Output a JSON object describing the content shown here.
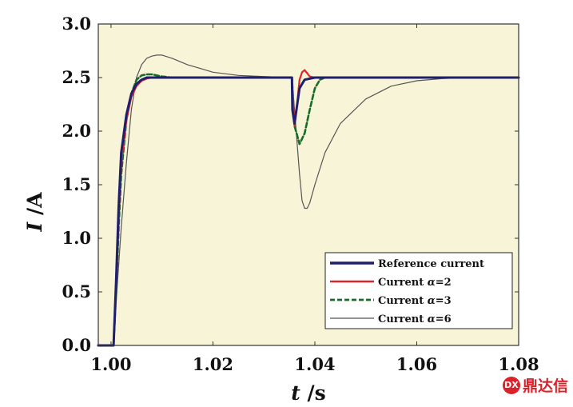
{
  "chart_data": {
    "type": "line",
    "title": "",
    "xlabel": {
      "italic": "t",
      "rest": " /s"
    },
    "ylabel": {
      "italic": "I",
      "rest": " /A"
    },
    "xlim": [
      0.9975,
      1.08
    ],
    "ylim": [
      0.0,
      3.0
    ],
    "xticks": [
      1.0,
      1.02,
      1.04,
      1.06,
      1.08
    ],
    "xtick_labels": [
      "1.00",
      "1.02",
      "1.04",
      "1.06",
      "1.08"
    ],
    "yticks": [
      0.0,
      0.5,
      1.0,
      1.5,
      2.0,
      2.5,
      3.0
    ],
    "ytick_labels": [
      "0.0",
      "0.5",
      "1.0",
      "1.5",
      "2.0",
      "2.5",
      "3.0"
    ],
    "grid": false,
    "legend_position": "bottom-right",
    "series": [
      {
        "name": "Reference current",
        "alpha": null,
        "color": "#1f1f6e",
        "style": "solid",
        "width": 3,
        "x": [
          0.9975,
          1.0005,
          1.001,
          1.0015,
          1.002,
          1.003,
          1.004,
          1.005,
          1.006,
          1.007,
          1.008,
          1.01,
          1.015,
          1.02,
          1.03,
          1.0355,
          1.0356,
          1.036,
          1.037,
          1.038,
          1.04,
          1.05,
          1.06,
          1.07,
          1.08
        ],
        "y": [
          0.0,
          0.0,
          0.6,
          1.3,
          1.8,
          2.15,
          2.35,
          2.44,
          2.48,
          2.5,
          2.5,
          2.5,
          2.5,
          2.5,
          2.5,
          2.5,
          2.2,
          2.07,
          2.4,
          2.48,
          2.5,
          2.5,
          2.5,
          2.5,
          2.5
        ]
      },
      {
        "name": "Current α=2",
        "alpha": "2",
        "color": "#e2222a",
        "style": "solid",
        "width": 2.2,
        "x": [
          0.9975,
          1.0005,
          1.001,
          1.0015,
          1.002,
          1.003,
          1.004,
          1.005,
          1.006,
          1.007,
          1.008,
          1.01,
          1.015,
          1.02,
          1.03,
          1.0355,
          1.036,
          1.0365,
          1.037,
          1.0375,
          1.038,
          1.0385,
          1.039,
          1.04,
          1.05,
          1.06,
          1.07,
          1.08
        ],
        "y": [
          0.0,
          0.0,
          0.55,
          1.2,
          1.7,
          2.1,
          2.32,
          2.42,
          2.47,
          2.49,
          2.5,
          2.5,
          2.5,
          2.5,
          2.5,
          2.5,
          2.05,
          2.25,
          2.48,
          2.55,
          2.57,
          2.54,
          2.51,
          2.5,
          2.5,
          2.5,
          2.5,
          2.5
        ]
      },
      {
        "name": "Current α=3",
        "alpha": "3",
        "color": "#1a6b2a",
        "style": "dashed",
        "width": 2.6,
        "x": [
          0.9975,
          1.0005,
          1.001,
          1.0015,
          1.002,
          1.003,
          1.004,
          1.005,
          1.006,
          1.007,
          1.008,
          1.009,
          1.01,
          1.012,
          1.015,
          1.02,
          1.03,
          1.0355,
          1.036,
          1.037,
          1.038,
          1.039,
          1.04,
          1.041,
          1.042,
          1.05,
          1.06,
          1.07,
          1.08
        ],
        "y": [
          0.0,
          0.0,
          0.5,
          1.1,
          1.6,
          2.1,
          2.35,
          2.48,
          2.52,
          2.53,
          2.53,
          2.52,
          2.51,
          2.5,
          2.5,
          2.5,
          2.5,
          2.5,
          2.05,
          1.88,
          1.98,
          2.2,
          2.4,
          2.48,
          2.5,
          2.5,
          2.5,
          2.5,
          2.5
        ]
      },
      {
        "name": "Current α=6",
        "alpha": "6",
        "color": "#555555",
        "style": "solid",
        "width": 1.2,
        "x": [
          0.9975,
          1.0005,
          1.001,
          1.002,
          1.003,
          1.004,
          1.005,
          1.006,
          1.007,
          1.008,
          1.009,
          1.01,
          1.012,
          1.015,
          1.02,
          1.025,
          1.03,
          1.0355,
          1.036,
          1.037,
          1.0375,
          1.038,
          1.0385,
          1.039,
          1.04,
          1.042,
          1.045,
          1.05,
          1.055,
          1.06,
          1.065,
          1.07,
          1.08
        ],
        "y": [
          0.0,
          0.0,
          0.4,
          1.1,
          1.7,
          2.2,
          2.5,
          2.62,
          2.68,
          2.7,
          2.71,
          2.71,
          2.68,
          2.62,
          2.55,
          2.52,
          2.51,
          2.5,
          2.2,
          1.6,
          1.35,
          1.28,
          1.28,
          1.33,
          1.5,
          1.8,
          2.07,
          2.3,
          2.42,
          2.47,
          2.49,
          2.5,
          2.5
        ]
      }
    ]
  },
  "legend": {
    "items": [
      {
        "prefix": "Reference current",
        "alpha_symbol": "",
        "suffix": ""
      },
      {
        "prefix": "Current ",
        "alpha_symbol": "α",
        "suffix": "=2"
      },
      {
        "prefix": "Current ",
        "alpha_symbol": "α",
        "suffix": "=3"
      },
      {
        "prefix": "Current ",
        "alpha_symbol": "α",
        "suffix": "=6"
      }
    ]
  },
  "watermark": {
    "icon_text": "DX",
    "text": "鼎达信"
  },
  "colors": {
    "plot_background": "#f8f4d8",
    "frame": "#333333"
  }
}
